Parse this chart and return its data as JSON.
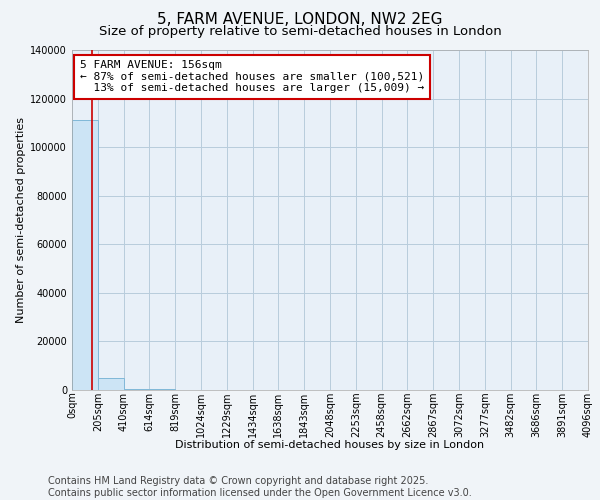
{
  "title": "5, FARM AVENUE, LONDON, NW2 2EG",
  "subtitle": "Size of property relative to semi-detached houses in London",
  "xlabel": "Distribution of semi-detached houses by size in London",
  "ylabel": "Number of semi-detached properties",
  "annotation_line1": "5 FARM AVENUE: 156sqm",
  "annotation_line2": "← 87% of semi-detached houses are smaller (100,521)",
  "annotation_line3": "  13% of semi-detached houses are larger (15,009) →",
  "bin_edges": [
    0,
    205,
    410,
    614,
    819,
    1024,
    1229,
    1434,
    1638,
    1843,
    2048,
    2253,
    2458,
    2662,
    2867,
    3072,
    3277,
    3482,
    3686,
    3891,
    4096
  ],
  "bin_labels": [
    "0sqm",
    "205sqm",
    "410sqm",
    "614sqm",
    "819sqm",
    "1024sqm",
    "1229sqm",
    "1434sqm",
    "1638sqm",
    "1843sqm",
    "2048sqm",
    "2253sqm",
    "2458sqm",
    "2662sqm",
    "2867sqm",
    "3072sqm",
    "3277sqm",
    "3482sqm",
    "3686sqm",
    "3891sqm",
    "4096sqm"
  ],
  "bar_heights": [
    111000,
    5000,
    600,
    250,
    120,
    70,
    50,
    35,
    25,
    18,
    12,
    9,
    7,
    5,
    4,
    3,
    2,
    2,
    1,
    1
  ],
  "bar_color": "#cce4f5",
  "bar_edge_color": "#80b8d8",
  "vline_color": "#cc0000",
  "vline_x": 156,
  "ylim": [
    0,
    140000
  ],
  "yticks": [
    0,
    20000,
    40000,
    60000,
    80000,
    100000,
    120000,
    140000
  ],
  "bg_color": "#f0f4f8",
  "plot_bg_color": "#e8f0f8",
  "grid_color": "#b8ccdc",
  "annotation_box_color": "#cc0000",
  "footer_text": "Contains HM Land Registry data © Crown copyright and database right 2025.\nContains public sector information licensed under the Open Government Licence v3.0.",
  "title_fontsize": 11,
  "subtitle_fontsize": 9.5,
  "label_fontsize": 8,
  "tick_fontsize": 7,
  "footer_fontsize": 7,
  "annot_fontsize": 8
}
